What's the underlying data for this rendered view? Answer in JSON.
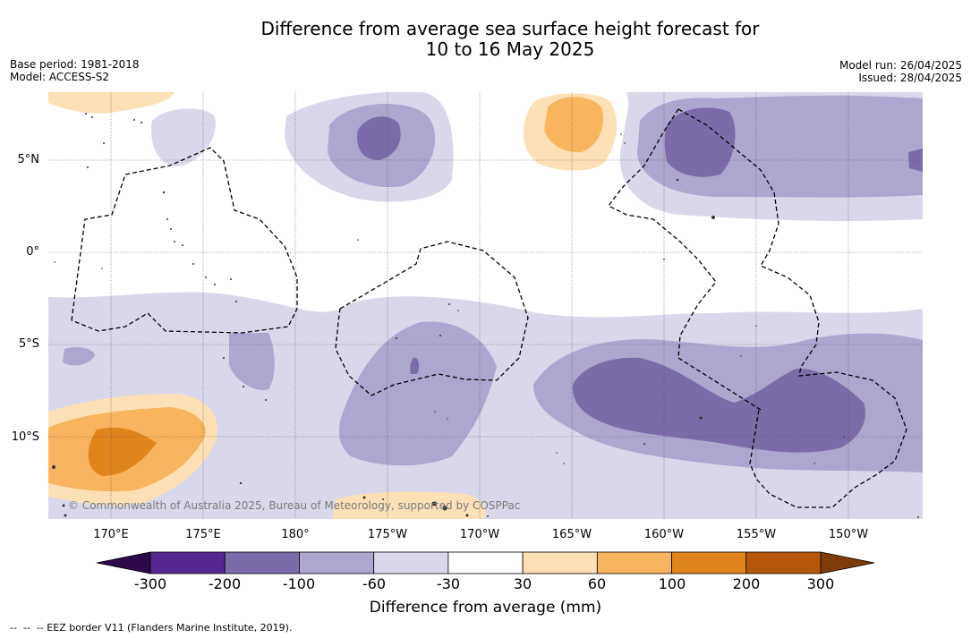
{
  "title_line1": "Difference from average sea surface height forecast for",
  "title_line2": "10 to 16 May 2025",
  "info_left": {
    "base_period": "Base period: 1981-2018",
    "model": "Model: ACCESS-S2"
  },
  "info_right": {
    "model_run": "Model run: 26/04/2025",
    "issued": "Issued: 28/04/2025"
  },
  "lat_labels": [
    "5°N",
    "0°",
    "5°S",
    "10°S"
  ],
  "lon_labels": [
    "170°E",
    "175°E",
    "180°",
    "175°W",
    "170°W",
    "165°W",
    "160°W",
    "155°W",
    "150°W"
  ],
  "copyright": "© Commonwealth of Australia 2025, Bureau of Meteorology, supported by COSPPac",
  "colorbar": {
    "ticks": [
      "-300",
      "-200",
      "-100",
      "-60",
      "-30",
      "30",
      "60",
      "100",
      "200",
      "300"
    ],
    "label": "Difference from average (mm)",
    "colors": [
      "#2c0a4a",
      "#54278f",
      "#7b6ba9",
      "#ada6cf",
      "#d9d8ea",
      "#ffffff",
      "#fde0b5",
      "#f9b45f",
      "#e0841c",
      "#b45708",
      "#7f3b08"
    ]
  },
  "footnote": "--  --  -- EEZ border V11 (Flanders Marine Institute, 2019)."
}
